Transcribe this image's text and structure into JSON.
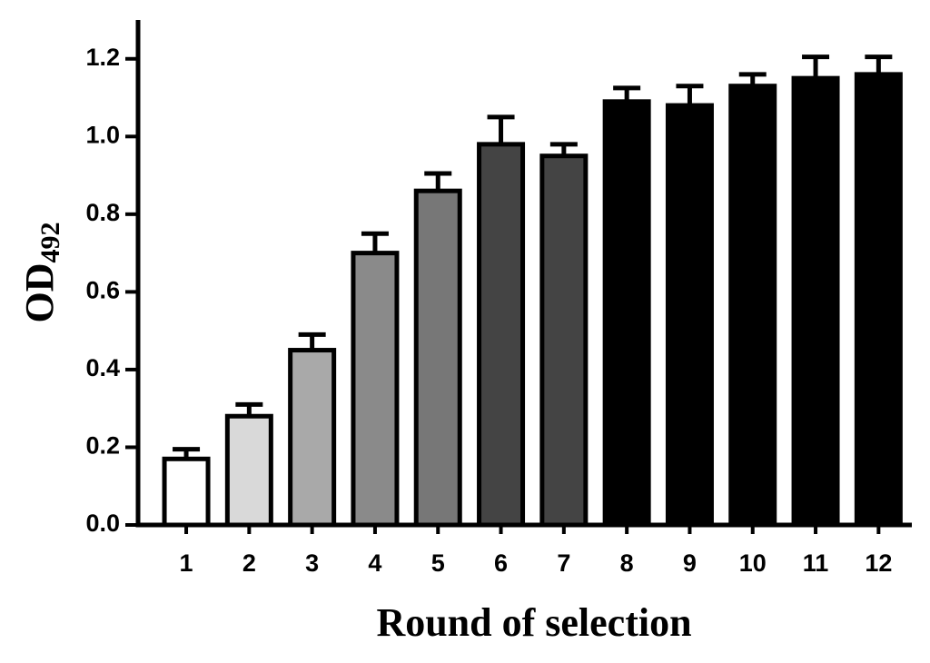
{
  "chart_data": {
    "type": "bar",
    "x_label": "Round of selection",
    "y_label": "OD",
    "y_label_subscript": "492",
    "categories": [
      "1",
      "2",
      "3",
      "4",
      "5",
      "6",
      "7",
      "8",
      "9",
      "10",
      "11",
      "12"
    ],
    "values": [
      0.17,
      0.28,
      0.45,
      0.7,
      0.86,
      0.98,
      0.95,
      1.09,
      1.08,
      1.13,
      1.15,
      1.16
    ],
    "errors": [
      0.025,
      0.03,
      0.04,
      0.05,
      0.045,
      0.07,
      0.03,
      0.035,
      0.05,
      0.03,
      0.055,
      0.045
    ],
    "colors": [
      "#ffffff",
      "#d9d9d9",
      "#a9a9a9",
      "#8a8a8a",
      "#777777",
      "#444444",
      "#444444",
      "#000000",
      "#000000",
      "#000000",
      "#000000",
      "#000000"
    ],
    "ylim": [
      0,
      1.3
    ],
    "yticks": [
      {
        "value": 0,
        "label": "0.0"
      },
      0.2,
      0.4,
      0.6,
      0.8,
      {
        "value": 1,
        "label": "1.0"
      },
      1.2
    ]
  }
}
